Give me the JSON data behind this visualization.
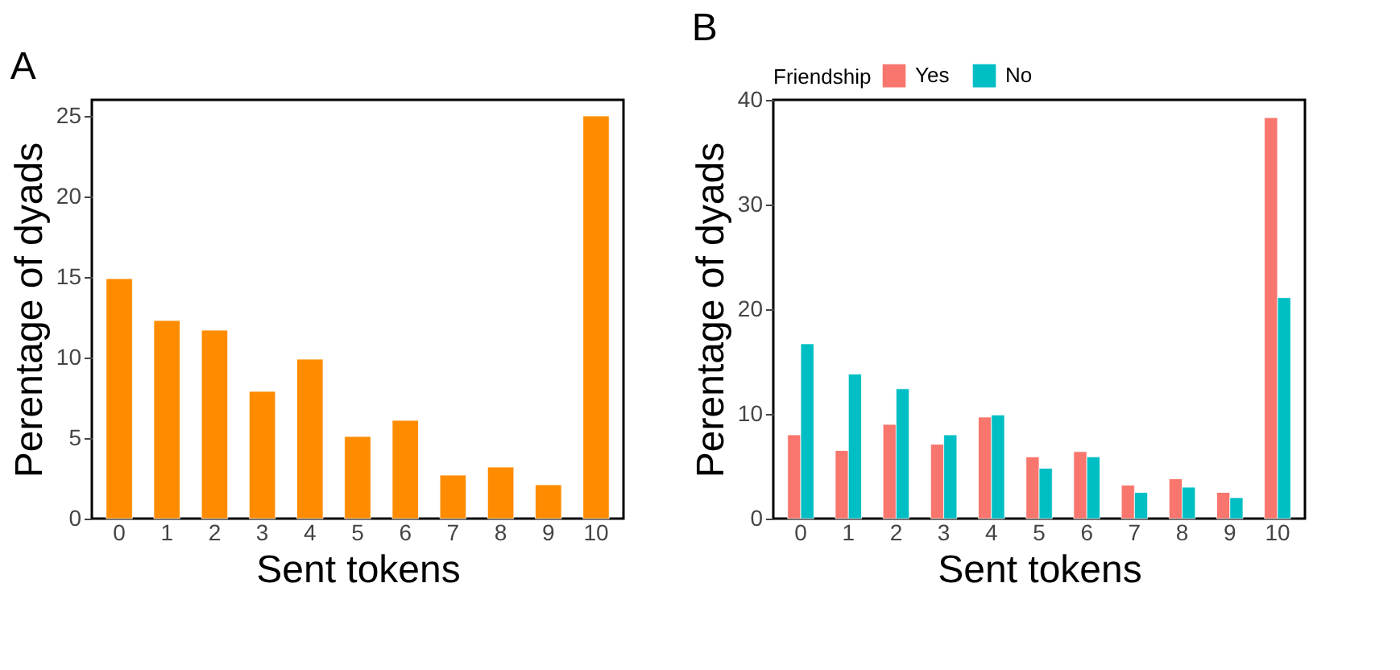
{
  "chart_data": [
    {
      "type": "bar",
      "title": "A",
      "xlabel": "Sent tokens",
      "ylabel": "Perentage of dyads",
      "categories": [
        "0",
        "1",
        "2",
        "3",
        "4",
        "5",
        "6",
        "7",
        "8",
        "9",
        "10"
      ],
      "series": [
        {
          "color": "#ff8c00",
          "values": [
            14.9,
            12.3,
            11.7,
            7.9,
            9.9,
            5.1,
            6.1,
            2.7,
            3.2,
            2.1,
            25.0
          ]
        }
      ],
      "ylim": [
        0,
        26
      ],
      "yticks": [
        0,
        5,
        10,
        15,
        20,
        25
      ],
      "grid": false
    },
    {
      "type": "bar",
      "title": "B",
      "xlabel": "Sent tokens",
      "ylabel": "Perentage of dyads",
      "legend_title": "Friendship",
      "categories": [
        "0",
        "1",
        "2",
        "3",
        "4",
        "5",
        "6",
        "7",
        "8",
        "9",
        "10"
      ],
      "series": [
        {
          "name": "Yes",
          "color": "#f8766d",
          "values": [
            8.0,
            6.5,
            9.0,
            7.1,
            9.7,
            5.9,
            6.4,
            3.2,
            3.8,
            2.5,
            38.3
          ]
        },
        {
          "name": "No",
          "color": "#00bfc4",
          "values": [
            16.7,
            13.8,
            12.4,
            8.0,
            9.9,
            4.8,
            5.9,
            2.5,
            3.0,
            2.0,
            21.1
          ]
        }
      ],
      "ylim": [
        0,
        40
      ],
      "yticks": [
        0,
        10,
        20,
        30,
        40
      ],
      "grid": false,
      "legend": "top"
    }
  ]
}
